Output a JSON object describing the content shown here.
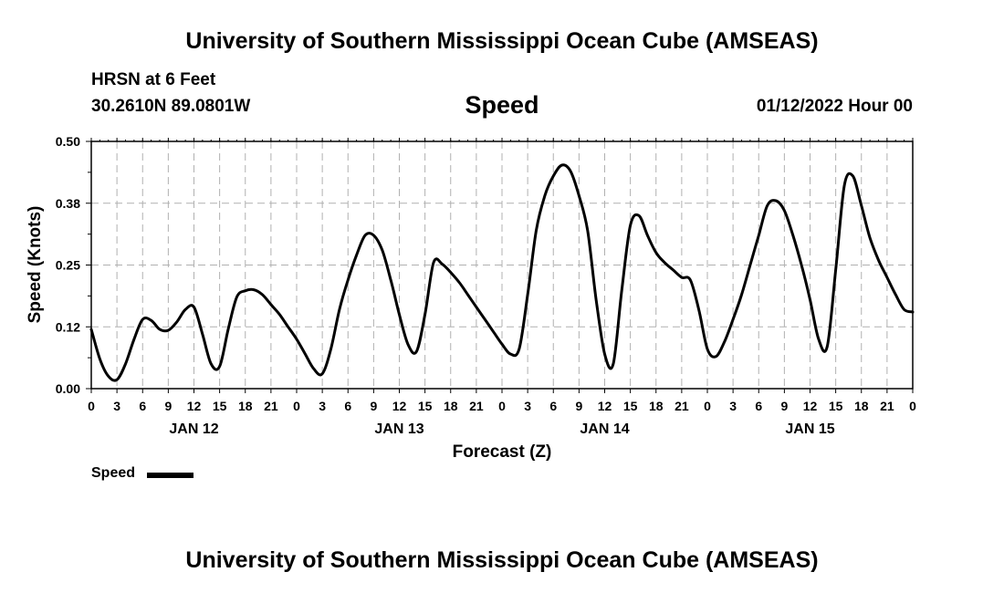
{
  "header": {
    "title": "University of Southern Mississippi Ocean Cube (AMSEAS)",
    "station": "HRSN at 6 Feet",
    "coords": "30.2610N  89.0801W",
    "variable": "Speed",
    "run": "01/12/2022 Hour 00"
  },
  "footer": {
    "title": "University of Southern Mississippi Ocean Cube (AMSEAS)"
  },
  "legend": {
    "label": "Speed"
  },
  "chart_data": {
    "type": "line",
    "title": "Speed",
    "xlabel": "Forecast (Z)",
    "ylabel": "Speed (Knots)",
    "xlim": [
      0,
      96
    ],
    "ylim": [
      0,
      0.5
    ],
    "yticks": [
      "0.00",
      "0.12",
      "0.25",
      "0.38",
      "0.50"
    ],
    "ytick_values": [
      0,
      0.125,
      0.25,
      0.375,
      0.5
    ],
    "xtick_labels": [
      "0",
      "3",
      "6",
      "9",
      "12",
      "15",
      "18",
      "21",
      "0",
      "3",
      "6",
      "9",
      "12",
      "15",
      "18",
      "21",
      "0",
      "3",
      "6",
      "9",
      "12",
      "15",
      "18",
      "21",
      "0",
      "3",
      "6",
      "9",
      "12",
      "15",
      "18",
      "21",
      "0"
    ],
    "day_labels": [
      {
        "label": "JAN 12",
        "hour": 12
      },
      {
        "label": "JAN 13",
        "hour": 36
      },
      {
        "label": "JAN 14",
        "hour": 60
      },
      {
        "label": "JAN 15",
        "hour": 84
      }
    ],
    "grid": true,
    "series": [
      {
        "name": "Speed",
        "color": "#000000",
        "x": [
          0,
          1,
          2,
          3,
          4,
          5,
          6,
          7,
          8,
          9,
          10,
          11,
          12,
          13,
          14,
          15,
          16,
          17,
          18,
          19,
          20,
          21,
          22,
          23,
          24,
          25,
          26,
          27,
          28,
          29,
          30,
          31,
          32,
          33,
          34,
          35,
          36,
          37,
          38,
          39,
          40,
          41,
          42,
          43,
          44,
          45,
          46,
          47,
          48,
          49,
          50,
          51,
          52,
          53,
          54,
          55,
          56,
          57,
          58,
          59,
          60,
          61,
          62,
          63,
          64,
          65,
          66,
          67,
          68,
          69,
          70,
          71,
          72,
          73,
          74,
          75,
          76,
          77,
          78,
          79,
          80,
          81,
          82,
          83,
          84,
          85,
          86,
          87,
          88,
          89,
          90,
          91,
          92,
          93,
          94,
          95,
          96
        ],
        "values": [
          0.12,
          0.06,
          0.025,
          0.018,
          0.05,
          0.1,
          0.14,
          0.138,
          0.12,
          0.118,
          0.135,
          0.16,
          0.165,
          0.11,
          0.05,
          0.045,
          0.12,
          0.185,
          0.198,
          0.2,
          0.19,
          0.17,
          0.15,
          0.125,
          0.1,
          0.07,
          0.04,
          0.03,
          0.08,
          0.16,
          0.22,
          0.27,
          0.31,
          0.31,
          0.28,
          0.22,
          0.15,
          0.09,
          0.075,
          0.15,
          0.255,
          0.252,
          0.235,
          0.215,
          0.19,
          0.165,
          0.14,
          0.115,
          0.09,
          0.07,
          0.08,
          0.19,
          0.32,
          0.39,
          0.43,
          0.452,
          0.44,
          0.39,
          0.32,
          0.18,
          0.07,
          0.05,
          0.2,
          0.33,
          0.35,
          0.31,
          0.275,
          0.255,
          0.24,
          0.225,
          0.22,
          0.16,
          0.08,
          0.065,
          0.095,
          0.14,
          0.19,
          0.25,
          0.31,
          0.37,
          0.38,
          0.36,
          0.31,
          0.25,
          0.18,
          0.1,
          0.085,
          0.24,
          0.41,
          0.43,
          0.37,
          0.305,
          0.26,
          0.225,
          0.19,
          0.16,
          0.155
        ]
      }
    ]
  }
}
